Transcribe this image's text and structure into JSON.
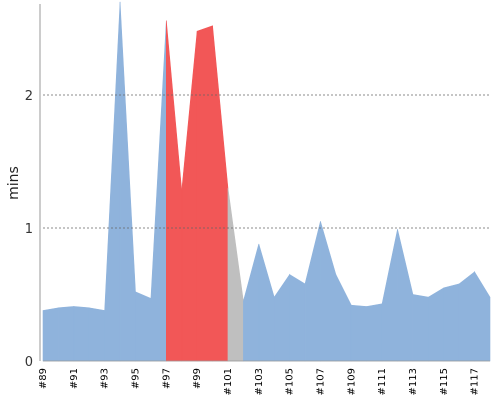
{
  "chart_data": {
    "type": "area",
    "ylabel": "mins",
    "ylim": [
      0,
      2.7
    ],
    "y_ticks": [
      0,
      1,
      2
    ],
    "grid": "horizontal-dashed",
    "x_ticks": [
      "#89",
      "#91",
      "#93",
      "#95",
      "#97",
      "#99",
      "#101",
      "#103",
      "#105",
      "#107",
      "#109",
      "#111",
      "#113",
      "#115",
      "#117"
    ],
    "colors": {
      "success": "#8fb3dc",
      "failure": "#f25757",
      "aborted": "#bfbfbf",
      "grid": "#666666",
      "axis": "#999999"
    },
    "points": [
      {
        "build": 89,
        "y": 0.38,
        "status": "success"
      },
      {
        "build": 90,
        "y": 0.4,
        "status": "success"
      },
      {
        "build": 91,
        "y": 0.41,
        "status": "success"
      },
      {
        "build": 92,
        "y": 0.4,
        "status": "success"
      },
      {
        "build": 93,
        "y": 0.38,
        "status": "success"
      },
      {
        "build": 94,
        "y": 2.7,
        "status": "success"
      },
      {
        "build": 95,
        "y": 0.52,
        "status": "success"
      },
      {
        "build": 96,
        "y": 0.47,
        "status": "success"
      },
      {
        "build": 97,
        "y": 2.56,
        "status": "failure"
      },
      {
        "build": 98,
        "y": 1.28,
        "status": "failure"
      },
      {
        "build": 99,
        "y": 2.48,
        "status": "failure"
      },
      {
        "build": 100,
        "y": 2.52,
        "status": "failure"
      },
      {
        "build": 101,
        "y": 1.3,
        "status": "aborted"
      },
      {
        "build": 102,
        "y": 0.45,
        "status": "success"
      },
      {
        "build": 103,
        "y": 0.88,
        "status": "success"
      },
      {
        "build": 104,
        "y": 0.48,
        "status": "success"
      },
      {
        "build": 105,
        "y": 0.65,
        "status": "success"
      },
      {
        "build": 106,
        "y": 0.58,
        "status": "success"
      },
      {
        "build": 107,
        "y": 1.05,
        "status": "success"
      },
      {
        "build": 108,
        "y": 0.65,
        "status": "success"
      },
      {
        "build": 109,
        "y": 0.42,
        "status": "success"
      },
      {
        "build": 110,
        "y": 0.41,
        "status": "success"
      },
      {
        "build": 111,
        "y": 0.43,
        "status": "success"
      },
      {
        "build": 112,
        "y": 0.99,
        "status": "success"
      },
      {
        "build": 113,
        "y": 0.5,
        "status": "success"
      },
      {
        "build": 114,
        "y": 0.48,
        "status": "success"
      },
      {
        "build": 115,
        "y": 0.55,
        "status": "success"
      },
      {
        "build": 116,
        "y": 0.58,
        "status": "success"
      },
      {
        "build": 117,
        "y": 0.67,
        "status": "success"
      },
      {
        "build": 118,
        "y": 0.48,
        "status": "success"
      }
    ]
  }
}
